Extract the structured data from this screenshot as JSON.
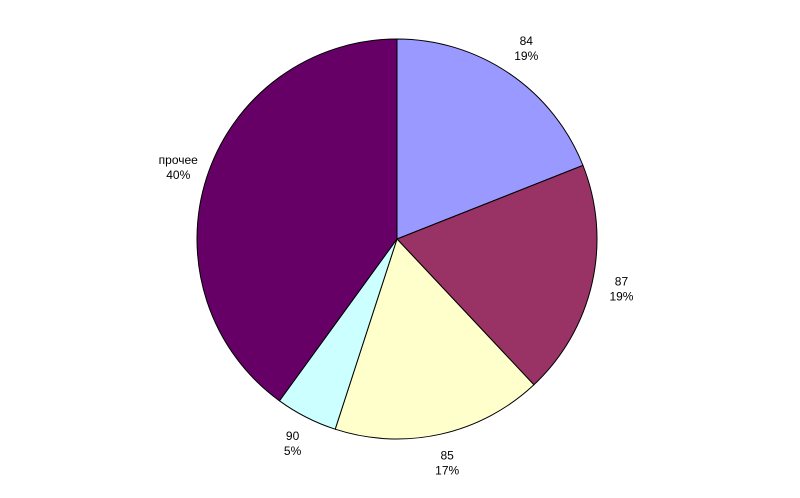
{
  "chart_data": {
    "type": "pie",
    "categories": [
      "84",
      "87",
      "85",
      "90",
      "прочее"
    ],
    "values": [
      19,
      19,
      17,
      5,
      40
    ],
    "value_labels": [
      "19%",
      "19%",
      "17%",
      "5%",
      "40%"
    ],
    "colors": [
      "#9999ff",
      "#993366",
      "#ffffcc",
      "#ccffff",
      "#660066"
    ]
  }
}
